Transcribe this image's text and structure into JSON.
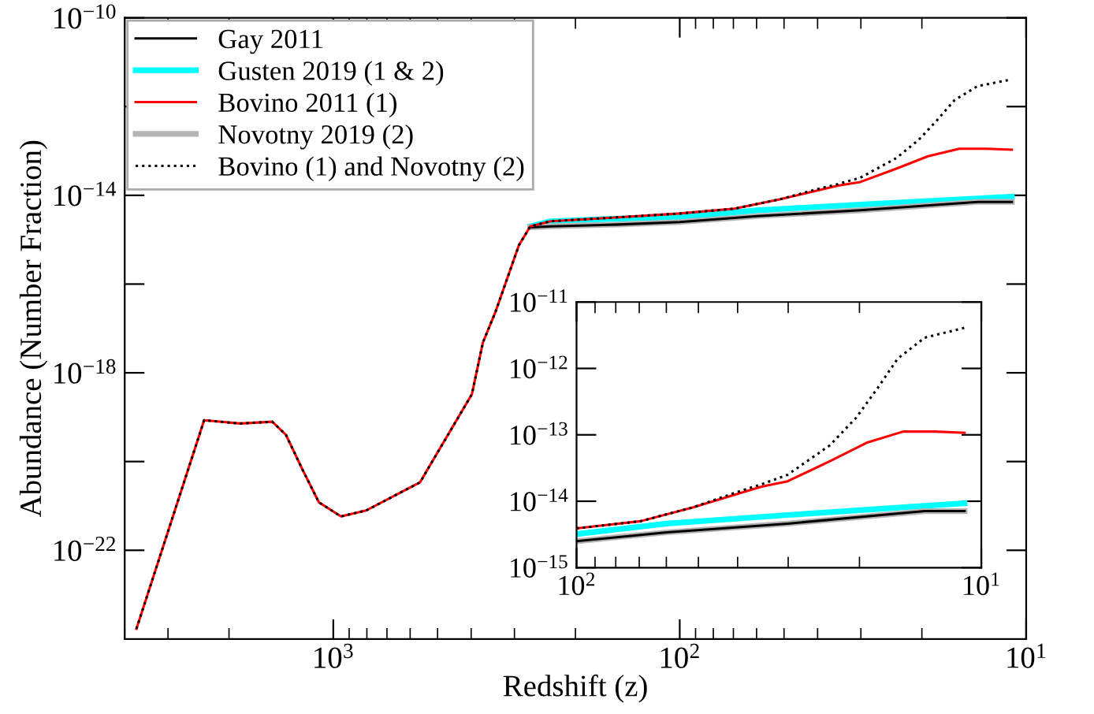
{
  "chart_data": [
    {
      "type": "line",
      "xlabel": "Redshift (z)",
      "ylabel": "Abundance (Number Fraction)",
      "log": "xy",
      "xlim": [
        4000,
        10
      ],
      "ylim": [
        1e-24,
        1e-10
      ],
      "xticks": [
        {
          "value": 1000,
          "label": "10$^{3}$"
        },
        {
          "value": 100,
          "label": "10$^{2}$"
        },
        {
          "value": 10,
          "label": "10$^{1}$"
        }
      ],
      "yticks": [
        {
          "value": 1e-22,
          "label": "10$^{−22}$"
        },
        {
          "value": 1e-20,
          "label": null
        },
        {
          "value": 1e-18,
          "label": "10$^{−18}$"
        },
        {
          "value": 1e-16,
          "label": null
        },
        {
          "value": 1e-14,
          "label": "10$^{−14}$"
        },
        {
          "value": 1e-12,
          "label": null
        },
        {
          "value": 1e-10,
          "label": "10$^{−10}$"
        }
      ],
      "grid": false,
      "legend": "top left",
      "marker": "none",
      "series": [
        {
          "name": "Gay 2011",
          "color": "#000000",
          "line_style": "solid",
          "x": [
            270,
            236,
            150,
            100,
            59.8,
            30.1,
            13.8,
            11
          ],
          "values": [
            1.9e-15,
            2e-15,
            2.2e-15,
            2.5e-15,
            3.4e-15,
            4.6e-15,
            7.1e-15,
            7.1e-15
          ]
        },
        {
          "name": "Gusten 2019 (1 & 2)",
          "color": "#00ffff",
          "line_style": "solid",
          "x": [
            270,
            236,
            150,
            100,
            59.8,
            30.1,
            13.8,
            11
          ],
          "values": [
            2e-15,
            2.6e-15,
            3e-15,
            3.2e-15,
            4.6e-15,
            6.2e-15,
            8.5e-15,
            9.3e-15
          ]
        },
        {
          "name": "Bovino 2011 (1)",
          "color": "#ff0000",
          "line_style": "solid",
          "x": [
            3700,
            2360,
            1855,
            1500,
            1370,
            1220,
            1100,
            950,
            804,
            562,
            398,
            370,
            340,
            291,
            270,
            236,
            150,
            100,
            69.5,
            51.5,
            40.5,
            34.9,
            30.1,
            23.7,
            19.2,
            15.6,
            13.0,
            11
          ],
          "values": [
            1.7e-24,
            8.5e-20,
            7.2e-20,
            7.9e-20,
            4e-20,
            6e-21,
            1.2e-21,
            5.8e-22,
            7.9e-22,
            3.4e-21,
            3.3e-19,
            4.8e-18,
            2.4e-17,
            7.6e-16,
            2e-15,
            2.6e-15,
            3.2e-15,
            3.9e-15,
            5e-15,
            8.1e-15,
            1.26e-14,
            1.66e-14,
            2e-14,
            4e-14,
            7.6e-14,
            1.12e-13,
            1.12e-13,
            1.07e-13
          ]
        },
        {
          "name": "Novotny 2019 (2)",
          "color": "#b4b4b4",
          "line_style": "solid",
          "x": [
            270,
            236,
            150,
            100,
            59.8,
            30.1,
            13.8,
            11
          ],
          "values": [
            1.9e-15,
            2e-15,
            2.2e-15,
            2.5e-15,
            3.4e-15,
            4.6e-15,
            7.1e-15,
            7.1e-15
          ]
        },
        {
          "name": "Bovino (1) and Novotny (2)",
          "color": "#000000",
          "line_style": "dotted",
          "x": [
            3700,
            2360,
            1855,
            1500,
            1370,
            1220,
            1100,
            950,
            804,
            562,
            398,
            370,
            340,
            291,
            270,
            236,
            150,
            100,
            69.5,
            51.5,
            40.5,
            34.9,
            30.1,
            23.7,
            20.4,
            18.1,
            16.1,
            13.8,
            11
          ],
          "values": [
            1.7e-24,
            8.5e-20,
            7.2e-20,
            7.9e-20,
            4e-20,
            6e-21,
            1.2e-21,
            5.8e-22,
            7.9e-22,
            3.4e-21,
            3.3e-19,
            4.8e-18,
            2.4e-17,
            7.6e-16,
            2e-15,
            2.6e-15,
            3.2e-15,
            3.9e-15,
            5e-15,
            8.1e-15,
            1.35e-14,
            1.8e-14,
            2.5e-14,
            6.9e-14,
            1.8e-13,
            4.9e-13,
            1.4e-12,
            2.9e-12,
            4.1e-12
          ]
        }
      ]
    },
    {
      "type": "line",
      "log": "xy",
      "xlim": [
        100,
        10
      ],
      "ylim": [
        1e-15,
        1e-11
      ],
      "xticks": [
        {
          "value": 100,
          "label": "10$^{2}$"
        },
        {
          "value": 10,
          "label": "10$^{1}$"
        }
      ],
      "yticks": [
        {
          "value": 1e-15,
          "label": "10$^{−15}$"
        },
        {
          "value": 1e-14,
          "label": "10$^{−14}$"
        },
        {
          "value": 1e-13,
          "label": "10$^{−13}$"
        },
        {
          "value": 1e-12,
          "label": "10$^{−12}$"
        },
        {
          "value": 1e-11,
          "label": "10$^{−11}$"
        }
      ],
      "grid": false,
      "marker": "none",
      "series": [
        {
          "color": "#000000",
          "line_style": "solid",
          "x": [
            100,
            59.8,
            30.1,
            13.8,
            11
          ],
          "values": [
            2.5e-15,
            3.4e-15,
            4.6e-15,
            7.1e-15,
            7.1e-15
          ]
        },
        {
          "color": "#00ffff",
          "line_style": "solid",
          "x": [
            100,
            59.8,
            30.1,
            13.8,
            11
          ],
          "values": [
            3.2e-15,
            4.6e-15,
            6.2e-15,
            8.5e-15,
            9.3e-15
          ]
        },
        {
          "color": "#ff0000",
          "line_style": "solid",
          "x": [
            100,
            69.5,
            51.5,
            40.5,
            34.9,
            30.1,
            23.7,
            19.2,
            15.6,
            13.0,
            11
          ],
          "values": [
            3.9e-15,
            5e-15,
            8.1e-15,
            1.26e-14,
            1.66e-14,
            2e-14,
            4e-14,
            7.6e-14,
            1.12e-13,
            1.12e-13,
            1.07e-13
          ]
        },
        {
          "color": "#b4b4b4",
          "line_style": "solid",
          "x": [
            100,
            59.8,
            30.1,
            13.8,
            11
          ],
          "values": [
            2.5e-15,
            3.4e-15,
            4.6e-15,
            7.1e-15,
            7.1e-15
          ]
        },
        {
          "color": "#000000",
          "line_style": "dotted",
          "x": [
            100,
            69.5,
            51.5,
            40.5,
            34.9,
            30.1,
            23.7,
            20.4,
            18.1,
            16.1,
            13.8,
            11
          ],
          "values": [
            3.9e-15,
            5e-15,
            8.1e-15,
            1.35e-14,
            1.8e-14,
            2.5e-14,
            6.9e-14,
            1.8e-13,
            4.9e-13,
            1.4e-12,
            2.9e-12,
            4.1e-12
          ]
        }
      ]
    }
  ]
}
